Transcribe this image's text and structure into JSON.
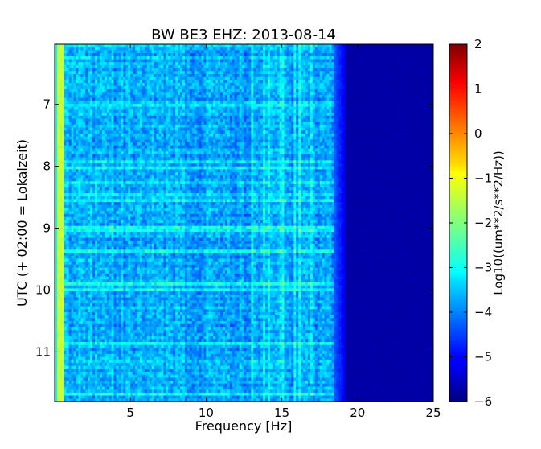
{
  "chart_data": {
    "type": "heatmap",
    "title": "BW BE3 EHZ: 2013-08-14",
    "xlabel": "Frequency [Hz]",
    "ylabel": "UTC (+ 02:00 = Lokalzeit)",
    "xlim": [
      0,
      25
    ],
    "ylim": [
      6.03,
      11.8
    ],
    "y_inverted": true,
    "x_ticks": [
      5,
      10,
      15,
      20,
      25
    ],
    "y_ticks": [
      7,
      8,
      9,
      10,
      11
    ],
    "colorbar": {
      "label": "Log10((um**2/s**2/Hz))",
      "colormap": "jet",
      "range": [
        -6,
        2
      ],
      "ticks": [
        2,
        1,
        0,
        -1,
        -2,
        -3,
        -4,
        -5,
        -6
      ]
    },
    "spectral_features": {
      "dominant_low_frequency_band_hz": [
        0.2,
        0.7
      ],
      "dominant_low_frequency_level": -1.3,
      "broadband_range_hz": [
        0.7,
        18.5
      ],
      "broadband_level": -3.6,
      "rolloff_hz": [
        18.5,
        19.2
      ],
      "noise_floor_level": -5.7,
      "persistent_lines_hz": [
        13.1,
        13.8,
        14.1,
        15.0,
        15.8,
        16.2,
        17.0
      ],
      "event_bands_utc": [
        9.48,
        9.51
      ]
    }
  }
}
